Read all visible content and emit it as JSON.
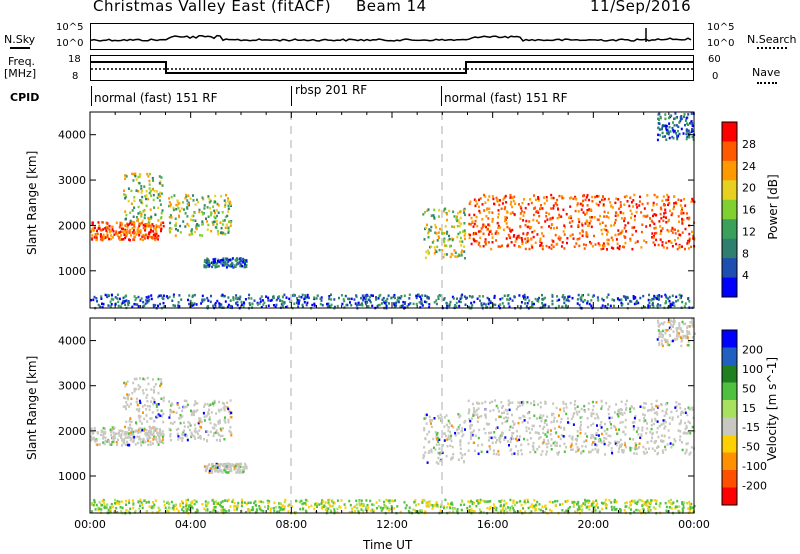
{
  "header": {
    "title": "Christmas Valley East (fitACF)",
    "beam": "Beam 14",
    "date": "11/Sep/2016"
  },
  "labels": {
    "nsky": "N.Sky",
    "nsearch": "N.Search",
    "freq": "Freq.",
    "freq_unit": "[MHz]",
    "nave": "Nave",
    "cpid": "CPID",
    "noise_tick_hi": "10^5",
    "noise_tick_lo": "10^0",
    "noise_tick_hi_r": "10^5",
    "noise_tick_lo_r": "10^0",
    "freq_tick_hi": "18",
    "freq_tick_lo": "8",
    "nave_tick_hi": "60",
    "nave_tick_lo": "0"
  },
  "cpid_segments": [
    {
      "label": "normal (fast) 151 RF",
      "start_h": 0,
      "end_h": 8
    },
    {
      "label": "rbsp 201 RF",
      "start_h": 8,
      "end_h": 14
    },
    {
      "label": "normal (fast) 151 RF",
      "start_h": 14,
      "end_h": 24
    }
  ],
  "chart_data": [
    {
      "type": "heatmap",
      "name": "power",
      "ylabel": "Slant Range [km]",
      "xlabel": "",
      "xlim": [
        0,
        24
      ],
      "ylim": [
        180,
        4500
      ],
      "yticks": [
        "1000",
        "2000",
        "3000",
        "4000"
      ],
      "colorbar": {
        "label": "Power [dB]",
        "ticks": [
          "4",
          "8",
          "12",
          "16",
          "20",
          "24",
          "28"
        ],
        "colors": [
          "#0000ff",
          "#1e4fb0",
          "#2f7f6f",
          "#3aa05a",
          "#7fd030",
          "#e8d020",
          "#ff9900",
          "#ff5a00",
          "#ff0000"
        ]
      },
      "echo_bands": [
        {
          "start_h": 0.0,
          "end_h": 2.9,
          "range_km": [
            1700,
            2100
          ],
          "level": "high"
        },
        {
          "start_h": 1.3,
          "end_h": 2.9,
          "range_km": [
            2100,
            3200
          ],
          "level": "mid"
        },
        {
          "start_h": 3.1,
          "end_h": 5.6,
          "range_km": [
            1800,
            2700
          ],
          "level": "mid"
        },
        {
          "start_h": 4.5,
          "end_h": 6.2,
          "range_km": [
            1100,
            1300
          ],
          "level": "low"
        },
        {
          "start_h": 13.2,
          "end_h": 14.9,
          "range_km": [
            1300,
            2400
          ],
          "level": "mid"
        },
        {
          "start_h": 15.0,
          "end_h": 24.0,
          "range_km": [
            1500,
            2700
          ],
          "level": "high"
        },
        {
          "start_h": 0.0,
          "end_h": 24.0,
          "range_km": [
            200,
            500
          ],
          "level": "low"
        },
        {
          "start_h": 22.5,
          "end_h": 24.0,
          "range_km": [
            3900,
            4500
          ],
          "level": "low"
        }
      ]
    },
    {
      "type": "heatmap",
      "name": "velocity",
      "ylabel": "Slant Range [km]",
      "xlabel": "Time UT",
      "xlim": [
        0,
        24
      ],
      "ylim": [
        180,
        4500
      ],
      "xticks": [
        "00:00",
        "04:00",
        "08:00",
        "12:00",
        "16:00",
        "20:00",
        "00:00"
      ],
      "yticks": [
        "1000",
        "2000",
        "3000",
        "4000"
      ],
      "colorbar": {
        "label": "Velocity [m s^-1]",
        "ticks": [
          "200",
          "100",
          "50",
          "15",
          "-15",
          "-50",
          "-100",
          "-200"
        ],
        "colors": [
          "#0000ff",
          "#2060c0",
          "#208020",
          "#50c040",
          "#a8e060",
          "#c8c8c0",
          "#ffd000",
          "#ff9000",
          "#ff5000",
          "#ff0000"
        ]
      }
    }
  ]
}
